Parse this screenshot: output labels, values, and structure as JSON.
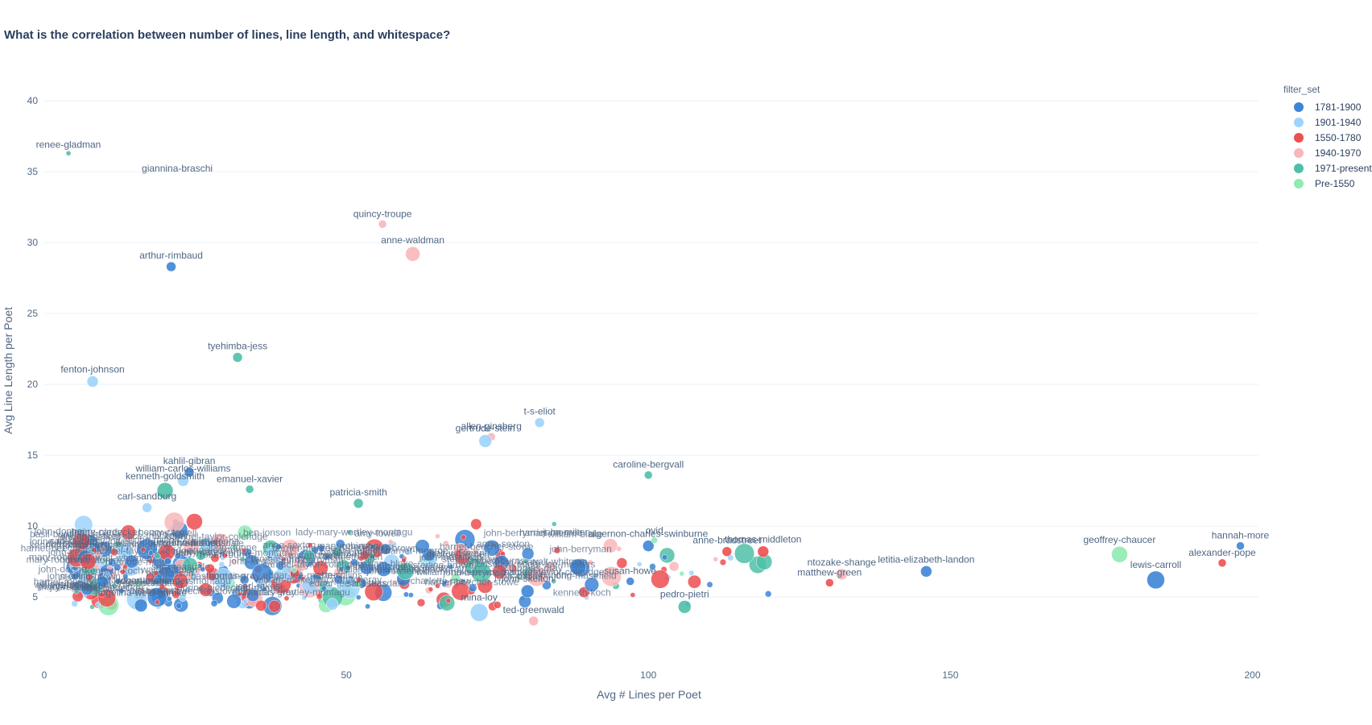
{
  "chart_data": {
    "type": "scatter",
    "title": "What is the correlation between number of lines, line length, and whitespace?",
    "xlabel": "Avg # Lines per Poet",
    "ylabel": "Avg Line Length per Poet",
    "xlim": [
      0,
      201
    ],
    "ylim": [
      0,
      42
    ],
    "xticks": [
      0,
      50,
      100,
      150,
      200
    ],
    "yticks": [
      5,
      10,
      15,
      20,
      25,
      30,
      35,
      40
    ],
    "grid": true,
    "legend": {
      "title": "filter_set",
      "placement": "top-right",
      "entries": [
        {
          "name": "1781-1900",
          "color": "#3d85d6"
        },
        {
          "name": "1901-1940",
          "color": "#9dd4fb"
        },
        {
          "name": "1550-1780",
          "color": "#ef4e50"
        },
        {
          "name": "1940-1970",
          "color": "#f9b7b9"
        },
        {
          "name": "1971-present",
          "color": "#4fbfa8"
        },
        {
          "name": "Pre-1550",
          "color": "#8eebb1"
        }
      ]
    },
    "points": [
      {
        "label": "renee-gladman",
        "x": 4,
        "y": 36.3,
        "series": "1971-present",
        "size": 3
      },
      {
        "label": "giannina-braschi",
        "x": 22,
        "y": 34.6,
        "series": "1971-present",
        "size": 0
      },
      {
        "label": "quincy-troupe",
        "x": 56,
        "y": 31.3,
        "series": "1940-1970",
        "size": 5
      },
      {
        "label": "anne-waldman",
        "x": 61,
        "y": 29.2,
        "series": "1940-1970",
        "size": 9
      },
      {
        "label": "arthur-rimbaud",
        "x": 21,
        "y": 28.3,
        "series": "1781-1900",
        "size": 6
      },
      {
        "label": "tyehimba-jess",
        "x": 32,
        "y": 21.9,
        "series": "1971-present",
        "size": 6
      },
      {
        "label": "fenton-johnson",
        "x": 8,
        "y": 20.2,
        "series": "1901-1940",
        "size": 7
      },
      {
        "label": "t-s-eliot",
        "x": 82,
        "y": 17.3,
        "series": "1901-1940",
        "size": 6
      },
      {
        "label": "allen-ginsberg",
        "x": 74,
        "y": 16.3,
        "series": "1940-1970",
        "size": 5
      },
      {
        "label": "gertrude-stein",
        "x": 73,
        "y": 16.0,
        "series": "1901-1940",
        "size": 8
      },
      {
        "label": "caroline-bergvall",
        "x": 100,
        "y": 13.6,
        "series": "1971-present",
        "size": 5
      },
      {
        "label": "kahlil-gibran",
        "x": 24,
        "y": 13.8,
        "series": "1781-1900",
        "size": 6
      },
      {
        "label": "william-carlos-williams",
        "x": 23,
        "y": 13.2,
        "series": "1901-1940",
        "size": 7
      },
      {
        "label": "emanuel-xavier",
        "x": 34,
        "y": 12.6,
        "series": "1971-present",
        "size": 5
      },
      {
        "label": "kenneth-goldsmith",
        "x": 20,
        "y": 12.5,
        "series": "1971-present",
        "size": 10
      },
      {
        "label": "patricia-smith",
        "x": 52,
        "y": 11.6,
        "series": "1971-present",
        "size": 6
      },
      {
        "label": "carl-sandburg",
        "x": 17,
        "y": 11.3,
        "series": "1901-1940",
        "size": 6
      },
      {
        "label": "geoffrey-chaucer",
        "x": 178,
        "y": 8.0,
        "series": "Pre-1550",
        "size": 10
      },
      {
        "label": "hannah-more",
        "x": 198,
        "y": 8.6,
        "series": "1781-1900",
        "size": 5
      },
      {
        "label": "alexander-pope",
        "x": 195,
        "y": 7.4,
        "series": "1550-1780",
        "size": 5
      },
      {
        "label": "lewis-carroll",
        "x": 184,
        "y": 6.2,
        "series": "1781-1900",
        "size": 11
      },
      {
        "label": "algernon-charles-swinburne",
        "x": 100,
        "y": 8.6,
        "series": "1781-1900",
        "size": 7
      },
      {
        "label": "ovid",
        "x": 101,
        "y": 9.0,
        "series": "Pre-1550",
        "size": 4
      },
      {
        "label": "thomas-middleton",
        "x": 119,
        "y": 8.2,
        "series": "1550-1780",
        "size": 7
      },
      {
        "label": "anne-bradstreet",
        "x": 113,
        "y": 8.2,
        "series": "1550-1780",
        "size": 6
      },
      {
        "label": "letitia-elizabeth-landon",
        "x": 146,
        "y": 6.8,
        "series": "1781-1900",
        "size": 7
      },
      {
        "label": "ntozake-shange",
        "x": 132,
        "y": 6.6,
        "series": "1940-1970",
        "size": 7
      },
      {
        "label": "matthew-green",
        "x": 130,
        "y": 6.0,
        "series": "1550-1780",
        "size": 5
      },
      {
        "label": "pedro-pietri",
        "x": 106,
        "y": 4.3,
        "series": "1971-present",
        "size": 8
      },
      {
        "label": "susan-howe",
        "x": 97,
        "y": 6.1,
        "series": "1781-1900",
        "size": 5
      },
      {
        "label": "john-skelton",
        "x": 80,
        "y": 5.4,
        "series": "1781-1900",
        "size": 8
      },
      {
        "label": "ted-greenwald",
        "x": 81,
        "y": 3.3,
        "series": "1940-1970",
        "size": 6
      },
      {
        "label": "mina-loy",
        "x": 72,
        "y": 3.9,
        "series": "1901-1940",
        "size": 11
      },
      {
        "label": "angelina-weld-grimke",
        "x": 16,
        "y": 4.4,
        "series": "1781-1900",
        "size": 8
      }
    ]
  }
}
